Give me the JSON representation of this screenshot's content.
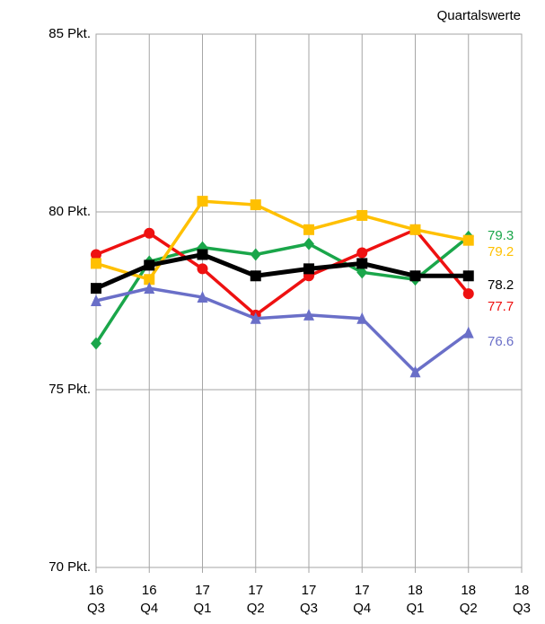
{
  "chart_data": {
    "type": "line",
    "subtitle": "Quartalswerte",
    "categories": [
      [
        "16",
        "Q3"
      ],
      [
        "16",
        "Q4"
      ],
      [
        "17",
        "Q1"
      ],
      [
        "17",
        "Q2"
      ],
      [
        "17",
        "Q3"
      ],
      [
        "17",
        "Q4"
      ],
      [
        "18",
        "Q1"
      ],
      [
        "18",
        "Q2"
      ],
      [
        "18",
        "Q3"
      ]
    ],
    "ylim": [
      70,
      85
    ],
    "yticks": [
      {
        "value": 70,
        "label": "70 Pkt."
      },
      {
        "value": 75,
        "label": "75 Pkt."
      },
      {
        "value": 80,
        "label": "80 Pkt."
      },
      {
        "value": 85,
        "label": "85 Pkt."
      }
    ],
    "grid": true,
    "series": [
      {
        "color": "#1aa64a",
        "marker": "diamond",
        "values": [
          76.3,
          78.6,
          79.0,
          78.8,
          79.1,
          78.3,
          78.1,
          79.3,
          null
        ],
        "end_label": "79.3"
      },
      {
        "color": "#ee1111",
        "marker": "circle",
        "values": [
          78.8,
          79.4,
          78.4,
          77.1,
          78.2,
          78.85,
          79.5,
          77.7,
          null
        ],
        "end_label": "77.7"
      },
      {
        "color": "#ffc000",
        "marker": "square",
        "values": [
          78.55,
          78.1,
          80.3,
          80.2,
          79.5,
          79.9,
          79.5,
          79.2,
          null
        ],
        "end_label": "79.2"
      },
      {
        "color": "#6a6fc8",
        "marker": "triangle",
        "values": [
          77.5,
          77.85,
          77.6,
          77.0,
          77.1,
          77.0,
          75.5,
          76.6,
          null
        ],
        "end_label": "76.6"
      },
      {
        "color": "#000000",
        "marker": "square",
        "values": [
          77.85,
          78.5,
          78.8,
          78.2,
          78.4,
          78.55,
          78.2,
          78.2,
          null
        ],
        "end_label": "78.2"
      }
    ]
  }
}
